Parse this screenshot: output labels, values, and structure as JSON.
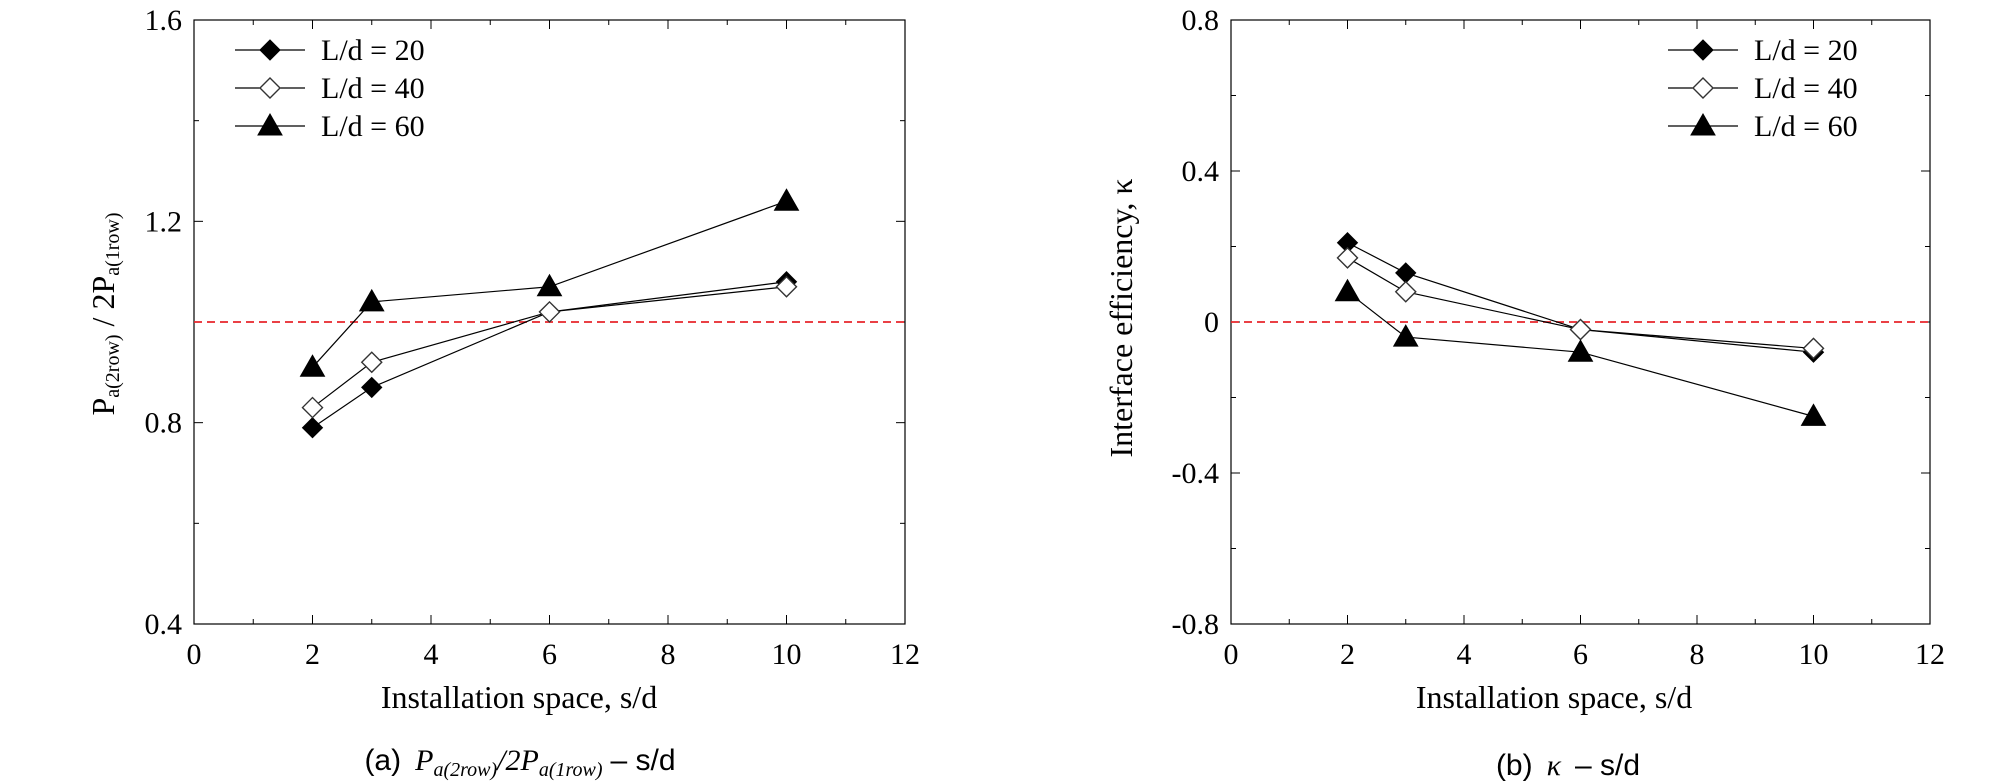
{
  "colors": {
    "axis": "#000000",
    "reference_line": "#e8262b",
    "marker_fill": "#000000",
    "marker_open": "#ffffff"
  },
  "chart_data": [
    {
      "type": "line",
      "id": "a",
      "caption": {
        "prefix": "(a)",
        "math_P1": "P",
        "math_sub1": "a(2row)",
        "math_slash": "/2",
        "math_P2": "P",
        "math_sub2": "a(1row)",
        "suffix": "– s/d"
      },
      "xlabel": "Installation space, s/d",
      "ylabel": {
        "p1": "P",
        "s1": "a(2row)",
        "mid": " / 2P",
        "s2": "a(1row)"
      },
      "xlim": [
        0,
        12
      ],
      "ylim": [
        0.4,
        1.6
      ],
      "xticks": [
        0,
        2,
        4,
        6,
        8,
        10,
        12
      ],
      "yticks": [
        0.4,
        0.8,
        1.2,
        1.6
      ],
      "xtick_labels": [
        "0",
        "2",
        "4",
        "6",
        "8",
        "10",
        "12"
      ],
      "ytick_labels": [
        "0.4",
        "0.8",
        "1.2",
        "1.6"
      ],
      "reference_line": 1.0,
      "legend_position": "top-left",
      "series": [
        {
          "name": "L/d = 20",
          "marker": "diamond-filled",
          "x": [
            2,
            3,
            6,
            10
          ],
          "values": [
            0.79,
            0.87,
            1.02,
            1.08
          ]
        },
        {
          "name": "L/d = 40",
          "marker": "diamond-open",
          "x": [
            2,
            3,
            6,
            10
          ],
          "values": [
            0.83,
            0.92,
            1.02,
            1.07
          ]
        },
        {
          "name": "L/d = 60",
          "marker": "triangle-filled",
          "x": [
            2,
            3,
            6,
            10
          ],
          "values": [
            0.91,
            1.04,
            1.07,
            1.24
          ]
        }
      ]
    },
    {
      "type": "line",
      "id": "b",
      "caption": {
        "prefix": "(b)",
        "math_kappa": "κ",
        "suffix": "– s/d"
      },
      "xlabel": "Installation space, s/d",
      "ylabel": {
        "text": "Interface efficiency, κ"
      },
      "xlim": [
        0,
        12
      ],
      "ylim": [
        -0.8,
        0.8
      ],
      "xticks": [
        0,
        2,
        4,
        6,
        8,
        10,
        12
      ],
      "yticks": [
        -0.8,
        -0.4,
        0,
        0.4,
        0.8
      ],
      "xtick_labels": [
        "0",
        "2",
        "4",
        "6",
        "8",
        "10",
        "12"
      ],
      "ytick_labels": [
        "-0.8",
        "-0.4",
        "0",
        "0.4",
        "0.8"
      ],
      "reference_line": 0,
      "legend_position": "top-right",
      "series": [
        {
          "name": "L/d = 20",
          "marker": "diamond-filled",
          "x": [
            2,
            3,
            6,
            10
          ],
          "values": [
            0.21,
            0.13,
            -0.02,
            -0.08
          ]
        },
        {
          "name": "L/d = 40",
          "marker": "diamond-open",
          "x": [
            2,
            3,
            6,
            10
          ],
          "values": [
            0.17,
            0.08,
            -0.02,
            -0.07
          ]
        },
        {
          "name": "L/d = 60",
          "marker": "triangle-filled",
          "x": [
            2,
            3,
            6,
            10
          ],
          "values": [
            0.08,
            -0.04,
            -0.08,
            -0.25
          ]
        }
      ]
    }
  ]
}
